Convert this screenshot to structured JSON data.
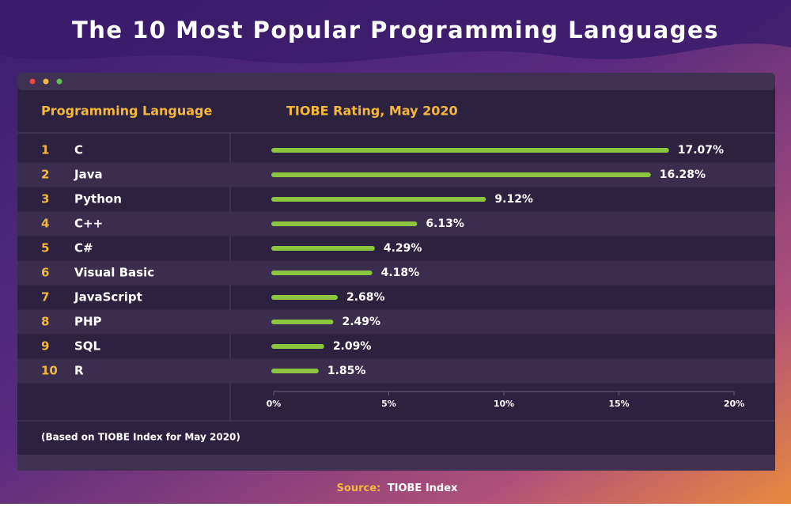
{
  "chart_data": {
    "type": "bar",
    "orientation": "horizontal",
    "title": "The 10 Most Popular Programming Languages",
    "category_header": "Programming Language",
    "value_header": "TIOBE Rating, May 2020",
    "ranks": [
      "1",
      "2",
      "3",
      "4",
      "5",
      "6",
      "7",
      "8",
      "9",
      "10"
    ],
    "categories": [
      "C",
      "Java",
      "Python",
      "C++",
      "C#",
      "Visual Basic",
      "JavaScript",
      "PHP",
      "SQL",
      "R"
    ],
    "values": [
      17.07,
      16.28,
      9.12,
      6.13,
      4.29,
      4.18,
      2.68,
      2.49,
      2.09,
      1.85
    ],
    "value_labels": [
      "17.07%",
      "16.28%",
      "9.12%",
      "6.13%",
      "4.29%",
      "4.18%",
      "2.68%",
      "2.49%",
      "2.09%",
      "1.85%"
    ],
    "color": "#8cc63f",
    "xlim": [
      0,
      20
    ],
    "xticks": [
      {
        "value": 0,
        "label": "0%"
      },
      {
        "value": 5,
        "label": "5%"
      },
      {
        "value": 10,
        "label": "10%"
      },
      {
        "value": 15,
        "label": "15%"
      },
      {
        "value": 20,
        "label": "20%"
      }
    ],
    "footnote": "(Based on TIOBE Index for May 2020)",
    "source_label": "Source:",
    "source": "TIOBE Index"
  }
}
